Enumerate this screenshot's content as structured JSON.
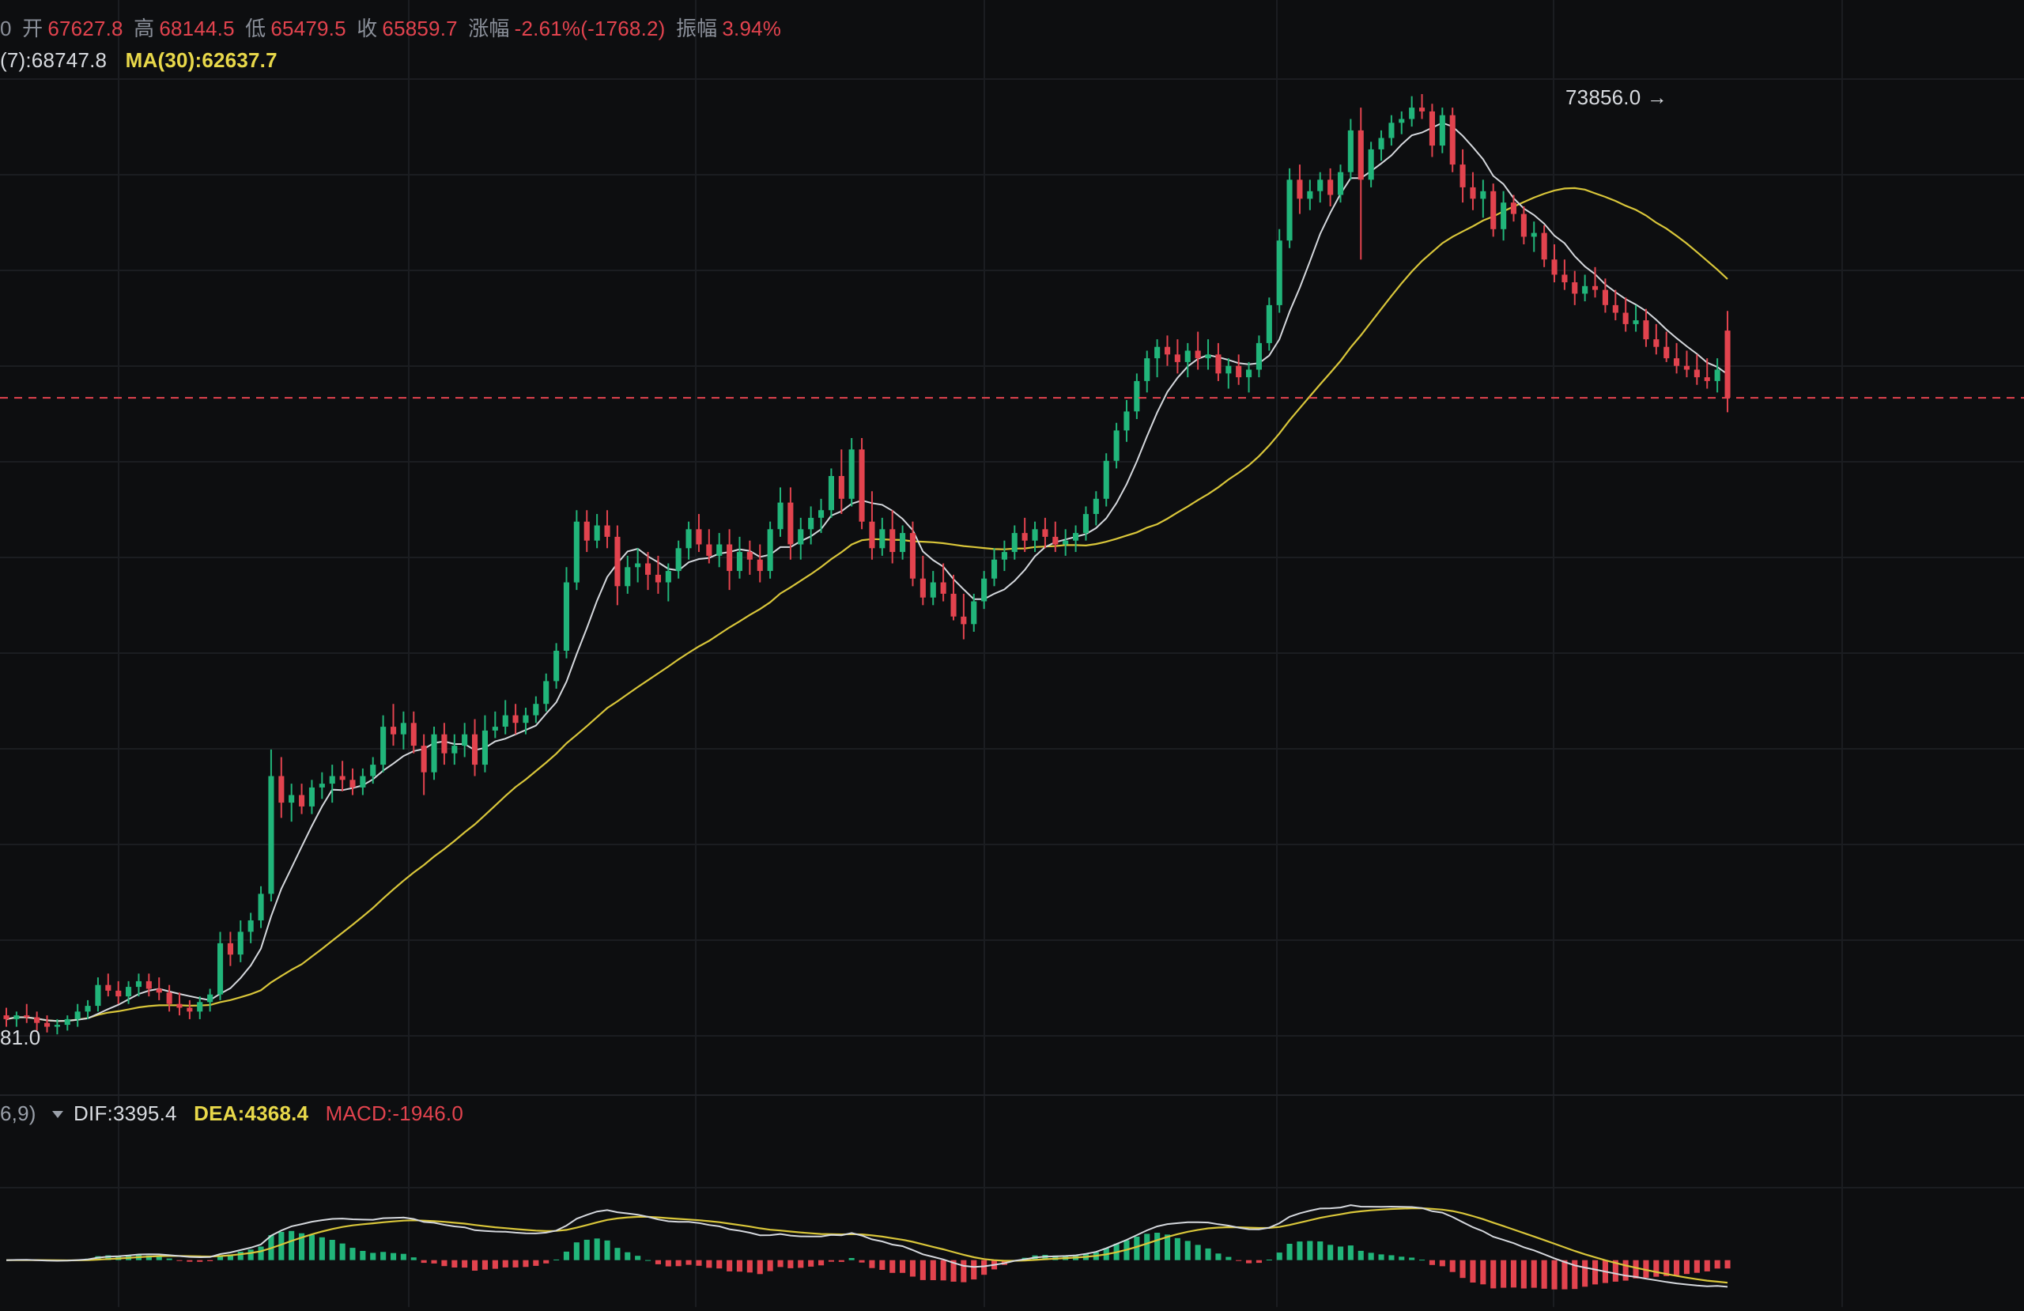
{
  "header": {
    "ohlc": {
      "lead": "0",
      "open_label": "开",
      "open": "67627.8",
      "high_label": "高",
      "high": "68144.5",
      "low_label": "低",
      "low": "65479.5",
      "close_label": "收",
      "close": "65859.7",
      "change_label": "涨幅",
      "change": "-2.61%(-1768.2)",
      "amp_label": "振幅",
      "amp": "3.94%"
    },
    "ma": {
      "ma7": "(7):68747.8",
      "ma30": "MA(30):62637.7"
    }
  },
  "price_panel": {
    "max_label": "73856.0 →",
    "min_label": "81.0"
  },
  "macd_panel": {
    "params": "6,9)",
    "dif": "DIF:3395.4",
    "dea": "DEA:4368.4",
    "macd": "MACD:-1946.0"
  },
  "colors": {
    "background": "#0d0e10",
    "grid": "#1b1d21",
    "up": "#21b57a",
    "down": "#e2434e",
    "ma7": "#d5d8dd",
    "ma30": "#d9c63a",
    "last_price_line": "#e2434e"
  },
  "chart_data": [
    {
      "type": "candlestick",
      "name": "price",
      "ylim": [
        47500,
        75500
      ],
      "last_price": 65859.7,
      "highlight_high": 73856.0,
      "candles": [
        [
          49600,
          49800,
          49300,
          49500
        ],
        [
          49500,
          49700,
          49300,
          49600
        ],
        [
          49600,
          49900,
          49400,
          49550
        ],
        [
          49550,
          49700,
          49200,
          49400
        ],
        [
          49400,
          49600,
          49150,
          49300
        ],
        [
          49300,
          49500,
          49100,
          49350
        ],
        [
          49350,
          49600,
          49200,
          49500
        ],
        [
          49500,
          49900,
          49300,
          49700
        ],
        [
          49700,
          50000,
          49500,
          49850
        ],
        [
          49850,
          50600,
          49700,
          50400
        ],
        [
          50400,
          50700,
          50100,
          50250
        ],
        [
          50250,
          50500,
          49900,
          50100
        ],
        [
          50100,
          50500,
          49900,
          50350
        ],
        [
          50350,
          50700,
          50100,
          50500
        ],
        [
          50500,
          50700,
          50100,
          50300
        ],
        [
          50300,
          50600,
          50000,
          50200
        ],
        [
          50200,
          50400,
          49700,
          49900
        ],
        [
          49900,
          50200,
          49600,
          49800
        ],
        [
          49800,
          50000,
          49500,
          49700
        ],
        [
          49700,
          50100,
          49500,
          49950
        ],
        [
          49950,
          50300,
          49700,
          50150
        ],
        [
          50150,
          51800,
          50000,
          51500
        ],
        [
          51500,
          51800,
          50900,
          51200
        ],
        [
          51200,
          52100,
          51000,
          51800
        ],
        [
          51800,
          52300,
          51500,
          52100
        ],
        [
          52100,
          53000,
          51900,
          52800
        ],
        [
          52800,
          56600,
          52600,
          55900
        ],
        [
          55900,
          56400,
          54800,
          55200
        ],
        [
          55200,
          55700,
          54700,
          55400
        ],
        [
          55400,
          55700,
          54900,
          55100
        ],
        [
          55100,
          55800,
          54900,
          55600
        ],
        [
          55600,
          56000,
          55300,
          55700
        ],
        [
          55700,
          56200,
          55200,
          55900
        ],
        [
          55900,
          56300,
          55500,
          55800
        ],
        [
          55800,
          56100,
          55400,
          55600
        ],
        [
          55600,
          56100,
          55400,
          55900
        ],
        [
          55900,
          56400,
          55700,
          56200
        ],
        [
          56200,
          57500,
          56000,
          57200
        ],
        [
          57200,
          57800,
          56700,
          57000
        ],
        [
          57000,
          57600,
          56600,
          57300
        ],
        [
          57300,
          57600,
          56500,
          56700
        ],
        [
          56700,
          57000,
          55400,
          56000
        ],
        [
          56000,
          57200,
          55800,
          57000
        ],
        [
          57000,
          57300,
          56200,
          56500
        ],
        [
          56500,
          57000,
          56200,
          56700
        ],
        [
          56700,
          57300,
          56400,
          57000
        ],
        [
          57000,
          57400,
          55900,
          56200
        ],
        [
          56200,
          57500,
          56000,
          57100
        ],
        [
          57100,
          57600,
          56900,
          57200
        ],
        [
          57200,
          57900,
          57000,
          57500
        ],
        [
          57500,
          57800,
          57000,
          57300
        ],
        [
          57300,
          57700,
          57000,
          57500
        ],
        [
          57500,
          58000,
          57300,
          57800
        ],
        [
          57800,
          58600,
          57600,
          58400
        ],
        [
          58400,
          59400,
          58200,
          59200
        ],
        [
          59200,
          61400,
          59000,
          61000
        ],
        [
          61000,
          62900,
          60800,
          62600
        ],
        [
          62600,
          62900,
          61800,
          62100
        ],
        [
          62100,
          62800,
          61900,
          62500
        ],
        [
          62500,
          62900,
          61900,
          62200
        ],
        [
          62200,
          62500,
          60400,
          60900
        ],
        [
          60900,
          61700,
          60700,
          61400
        ],
        [
          61400,
          61900,
          61000,
          61500
        ],
        [
          61500,
          61800,
          60800,
          61200
        ],
        [
          61200,
          61700,
          60700,
          61000
        ],
        [
          61000,
          61500,
          60500,
          61300
        ],
        [
          61300,
          62100,
          61100,
          61900
        ],
        [
          61900,
          62600,
          61600,
          62400
        ],
        [
          62400,
          62800,
          61800,
          62000
        ],
        [
          62000,
          62400,
          61500,
          61700
        ],
        [
          61700,
          62300,
          61400,
          62000
        ],
        [
          62000,
          62400,
          60800,
          61300
        ],
        [
          61300,
          62200,
          61100,
          61800
        ],
        [
          61800,
          62100,
          61200,
          61600
        ],
        [
          61600,
          62000,
          61000,
          61300
        ],
        [
          61300,
          62600,
          61100,
          62400
        ],
        [
          62400,
          63500,
          62200,
          63100
        ],
        [
          63100,
          63500,
          61600,
          62000
        ],
        [
          62000,
          62700,
          61600,
          62400
        ],
        [
          62400,
          63000,
          62000,
          62700
        ],
        [
          62700,
          63200,
          62300,
          62900
        ],
        [
          62900,
          64000,
          62700,
          63800
        ],
        [
          63800,
          64500,
          62800,
          63200
        ],
        [
          63200,
          64800,
          63000,
          64500
        ],
        [
          64500,
          64800,
          62400,
          62600
        ],
        [
          62600,
          63400,
          61600,
          61900
        ],
        [
          61900,
          62700,
          61700,
          62400
        ],
        [
          62400,
          62900,
          61500,
          61800
        ],
        [
          61800,
          62500,
          61600,
          62300
        ],
        [
          62300,
          62600,
          60900,
          61100
        ],
        [
          61100,
          61700,
          60400,
          60600
        ],
        [
          60600,
          61300,
          60400,
          61000
        ],
        [
          61000,
          61500,
          60500,
          60700
        ],
        [
          60700,
          61200,
          60000,
          60100
        ],
        [
          60100,
          60700,
          59500,
          59900
        ],
        [
          59900,
          60700,
          59700,
          60500
        ],
        [
          60500,
          61300,
          60300,
          61100
        ],
        [
          61100,
          61900,
          60900,
          61600
        ],
        [
          61600,
          62100,
          61300,
          61800
        ],
        [
          61800,
          62500,
          61600,
          62300
        ],
        [
          62300,
          62700,
          61800,
          62100
        ],
        [
          62100,
          62600,
          61800,
          62400
        ],
        [
          62400,
          62700,
          61900,
          62200
        ],
        [
          62200,
          62600,
          61800,
          62000
        ],
        [
          62000,
          62400,
          61700,
          62100
        ],
        [
          62100,
          62500,
          61800,
          62300
        ],
        [
          62300,
          63000,
          62100,
          62800
        ],
        [
          62800,
          63400,
          62500,
          63200
        ],
        [
          63200,
          64400,
          63000,
          64200
        ],
        [
          64200,
          65200,
          64000,
          65000
        ],
        [
          65000,
          65800,
          64700,
          65500
        ],
        [
          65500,
          66500,
          65300,
          66300
        ],
        [
          66300,
          67100,
          66000,
          66900
        ],
        [
          66900,
          67400,
          66400,
          67200
        ],
        [
          67200,
          67500,
          66700,
          67000
        ],
        [
          67000,
          67400,
          66500,
          66800
        ],
        [
          66800,
          67300,
          66400,
          67100
        ],
        [
          67100,
          67600,
          66600,
          66900
        ],
        [
          66900,
          67400,
          66600,
          67000
        ],
        [
          67000,
          67300,
          66300,
          66500
        ],
        [
          66500,
          66900,
          66100,
          66700
        ],
        [
          66700,
          67000,
          66200,
          66400
        ],
        [
          66400,
          66800,
          66000,
          66600
        ],
        [
          66600,
          67500,
          66400,
          67300
        ],
        [
          67300,
          68500,
          67100,
          68300
        ],
        [
          68300,
          70300,
          68100,
          70000
        ],
        [
          70000,
          71900,
          69800,
          71600
        ],
        [
          71600,
          72000,
          70700,
          71100
        ],
        [
          71100,
          71600,
          70800,
          71300
        ],
        [
          71300,
          71800,
          71000,
          71600
        ],
        [
          71600,
          71900,
          70900,
          71200
        ],
        [
          71200,
          72000,
          71000,
          71800
        ],
        [
          71800,
          73200,
          71600,
          72900
        ],
        [
          72900,
          73500,
          69500,
          71600
        ],
        [
          71600,
          72600,
          71400,
          72400
        ],
        [
          72400,
          72900,
          72100,
          72700
        ],
        [
          72700,
          73300,
          72500,
          73100
        ],
        [
          73100,
          73400,
          72800,
          73200
        ],
        [
          73200,
          73800,
          73000,
          73500
        ],
        [
          73500,
          73856,
          73200,
          73400
        ],
        [
          73400,
          73600,
          72200,
          72500
        ],
        [
          72500,
          73500,
          72300,
          73300
        ],
        [
          73300,
          73500,
          71800,
          72000
        ],
        [
          72000,
          72400,
          71000,
          71400
        ],
        [
          71400,
          71800,
          70800,
          71100
        ],
        [
          71100,
          71600,
          70600,
          71300
        ],
        [
          71300,
          71500,
          70100,
          70300
        ],
        [
          70300,
          71300,
          70000,
          71000
        ],
        [
          71000,
          71200,
          70500,
          70700
        ],
        [
          70700,
          70900,
          69900,
          70100
        ],
        [
          70100,
          70500,
          69700,
          70200
        ],
        [
          70200,
          70400,
          69300,
          69500
        ],
        [
          69500,
          69900,
          68900,
          69100
        ],
        [
          69100,
          69500,
          68700,
          68900
        ],
        [
          68900,
          69200,
          68300,
          68600
        ],
        [
          68600,
          69100,
          68400,
          68800
        ],
        [
          68800,
          69300,
          68500,
          68700
        ],
        [
          68700,
          69000,
          68100,
          68300
        ],
        [
          68300,
          68700,
          67900,
          68100
        ],
        [
          68100,
          68500,
          67600,
          67800
        ],
        [
          67800,
          68300,
          67600,
          67900
        ],
        [
          67900,
          68200,
          67200,
          67400
        ],
        [
          67400,
          67800,
          67000,
          67200
        ],
        [
          67200,
          67600,
          66800,
          66900
        ],
        [
          66900,
          67300,
          66500,
          66700
        ],
        [
          66700,
          67100,
          66400,
          66600
        ],
        [
          66600,
          67000,
          66200,
          66400
        ],
        [
          66400,
          66900,
          66100,
          66300
        ],
        [
          66300,
          66900,
          66000,
          66600
        ],
        [
          67628,
          68145,
          65480,
          65860
        ]
      ]
    },
    {
      "type": "bar+line",
      "name": "macd",
      "ylim": [
        -3000,
        6000
      ],
      "dif": 3395.4,
      "dea": 4368.4,
      "macd": -1946.0
    }
  ]
}
